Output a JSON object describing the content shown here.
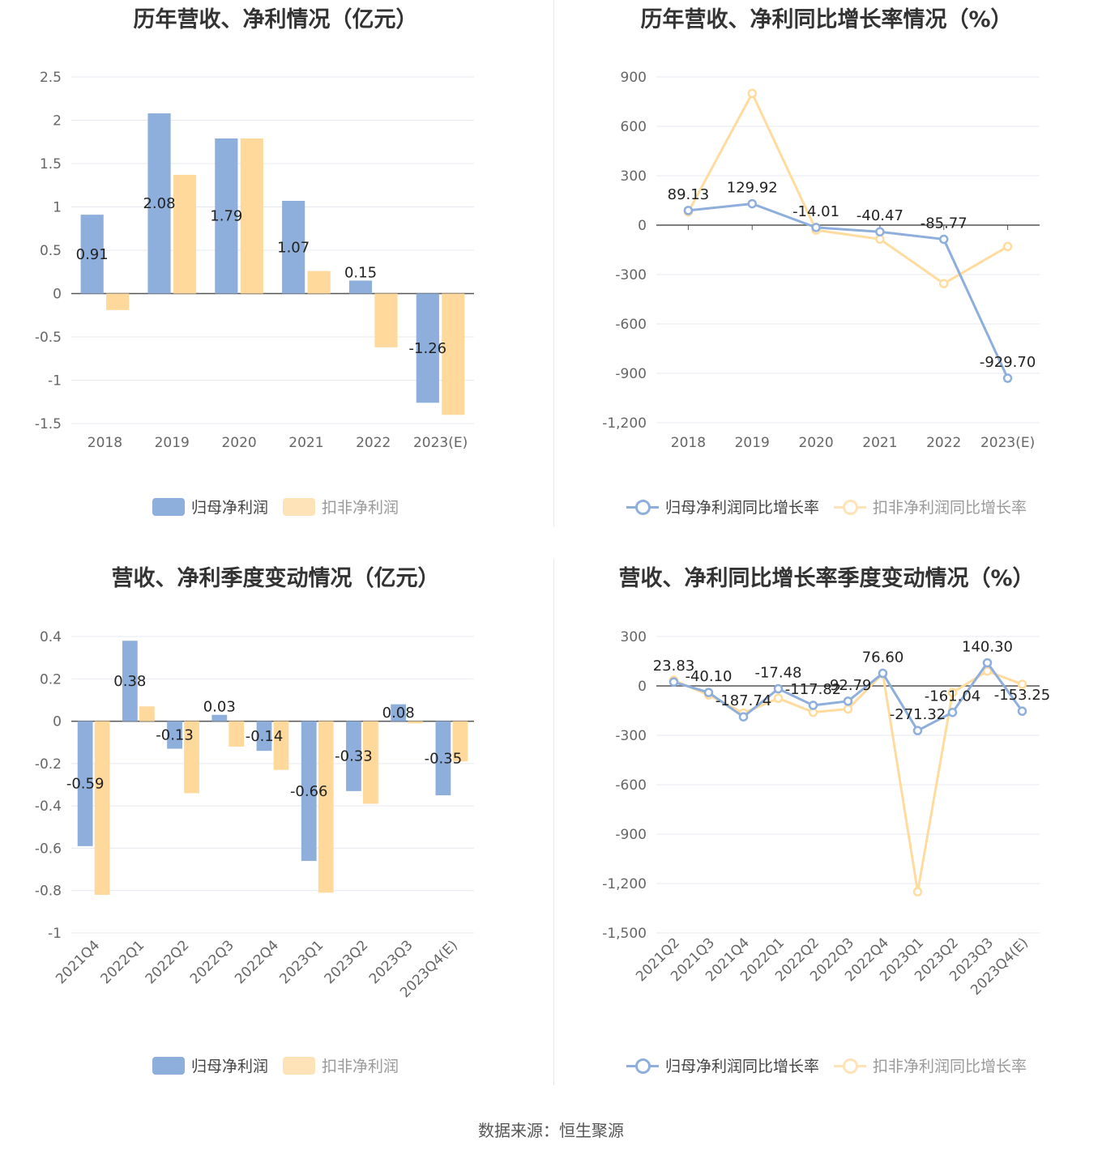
{
  "source": "数据来源：恒生聚源",
  "colors": {
    "blue": "#8eaedc",
    "orange": "#ffd89c",
    "lineBlue": "#8eaedc",
    "lineOrange": "#ffdb9e"
  },
  "charts": [
    {
      "title": "历年营收、净利情况（亿元）",
      "legend": [
        "归母净利润",
        "扣非净利润"
      ],
      "chart_data": {
        "type": "bar",
        "categories": [
          "2018",
          "2019",
          "2020",
          "2021",
          "2022",
          "2023(E)"
        ],
        "series": [
          {
            "name": "归母净利润",
            "values": [
              0.91,
              2.08,
              1.79,
              1.07,
              0.15,
              -1.26
            ],
            "labels": [
              "0.91",
              "2.08",
              "1.79",
              "1.07",
              "0.15",
              "-1.26"
            ]
          },
          {
            "name": "扣非净利润",
            "values": [
              -0.19,
              1.37,
              1.79,
              0.26,
              -0.62,
              -1.4
            ]
          }
        ],
        "ylim": [
          -1.5,
          2.5
        ],
        "yticks": [
          "2.5",
          "2",
          "1.5",
          "1",
          "0.5",
          "0",
          "-0.5",
          "-1",
          "-1.5"
        ],
        "ytick_values": [
          2.5,
          2,
          1.5,
          1,
          0.5,
          0,
          -0.5,
          -1,
          -1.5
        ]
      }
    },
    {
      "title": "历年营收、净利同比增长率情况（%）",
      "legend": [
        "归母净利润同比增长率",
        "扣非净利润同比增长率"
      ],
      "chart_data": {
        "type": "line",
        "categories": [
          "2018",
          "2019",
          "2020",
          "2021",
          "2022",
          "2023(E)"
        ],
        "series": [
          {
            "name": "归母净利润同比增长率",
            "values": [
              89.13,
              129.92,
              -14.01,
              -40.47,
              -85.77,
              -929.7
            ],
            "labels": [
              "89.13",
              "129.92",
              "-14.01",
              "-40.47",
              "-85.77",
              "-929.70"
            ]
          },
          {
            "name": "扣非净利润同比增长率",
            "values": [
              80,
              800,
              -30,
              -85,
              -355,
              -130
            ]
          }
        ],
        "ylim": [
          -1200,
          900
        ],
        "yticks": [
          "900",
          "600",
          "300",
          "0",
          "-300",
          "-600",
          "-900",
          "-1,200"
        ],
        "ytick_values": [
          900,
          600,
          300,
          0,
          -300,
          -600,
          -900,
          -1200
        ]
      }
    },
    {
      "title": "营收、净利季度变动情况（亿元）",
      "legend": [
        "归母净利润",
        "扣非净利润"
      ],
      "chart_data": {
        "type": "bar",
        "categories": [
          "2021Q4",
          "2022Q1",
          "2022Q2",
          "2022Q3",
          "2022Q4",
          "2023Q1",
          "2023Q2",
          "2023Q3",
          "2023Q4(E)"
        ],
        "series": [
          {
            "name": "归母净利润",
            "values": [
              -0.59,
              0.38,
              -0.13,
              0.03,
              -0.14,
              -0.66,
              -0.33,
              0.08,
              -0.35
            ],
            "labels": [
              "-0.59",
              "0.38",
              "-0.13",
              "0.03",
              "-0.14",
              "-0.66",
              "-0.33",
              "0.08",
              "-0.35"
            ]
          },
          {
            "name": "扣非净利润",
            "values": [
              -0.82,
              0.07,
              -0.34,
              -0.12,
              -0.23,
              -0.81,
              -0.39,
              -0.01,
              -0.19
            ]
          }
        ],
        "ylim": [
          -1,
          0.4
        ],
        "yticks": [
          "0.4",
          "0.2",
          "0",
          "-0.2",
          "-0.4",
          "-0.6",
          "-0.8",
          "-1"
        ],
        "ytick_values": [
          0.4,
          0.2,
          0,
          -0.2,
          -0.4,
          -0.6,
          -0.8,
          -1
        ],
        "rotate_x": true
      }
    },
    {
      "title": "营收、净利同比增长率季度变动情况（%）",
      "legend": [
        "归母净利润同比增长率",
        "扣非净利润同比增长率"
      ],
      "chart_data": {
        "type": "line",
        "categories": [
          "2021Q2",
          "2021Q3",
          "2021Q4",
          "2022Q1",
          "2022Q2",
          "2022Q3",
          "2022Q4",
          "2023Q1",
          "2023Q2",
          "2023Q3",
          "2023Q4(E)"
        ],
        "series": [
          {
            "name": "归母净利润同比增长率",
            "values": [
              23.83,
              -40.1,
              -187.74,
              -17.48,
              -117.82,
              -92.79,
              76.6,
              -271.32,
              -161.04,
              140.3,
              -153.25
            ],
            "labels": [
              "23.83",
              "-40.10",
              "-187.74",
              "-17.48",
              "-117.82",
              "-92.79",
              "76.60",
              "-271.32",
              "-161.04",
              "140.30",
              "-153.25"
            ]
          },
          {
            "name": "扣非净利润同比增长率",
            "values": [
              35,
              -55,
              -165,
              -75,
              -160,
              -140,
              75,
              -1250,
              -40,
              90,
              10
            ]
          }
        ],
        "ylim": [
          -1500,
          300
        ],
        "yticks": [
          "300",
          "0",
          "-300",
          "-600",
          "-900",
          "-1,200",
          "-1,500"
        ],
        "ytick_values": [
          300,
          0,
          -300,
          -600,
          -900,
          -1200,
          -1500
        ],
        "rotate_x": true
      }
    }
  ]
}
